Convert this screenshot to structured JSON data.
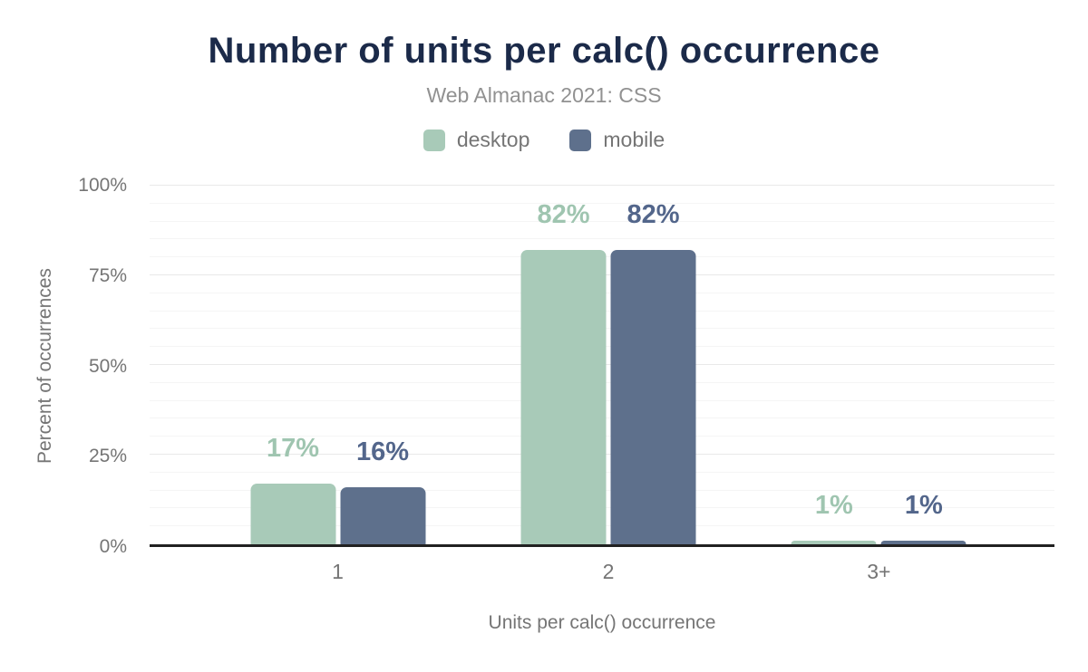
{
  "header": {
    "title": "Number of units per calc() occurrence",
    "subtitle": "Web Almanac 2021: CSS"
  },
  "chart_data": {
    "type": "bar",
    "title": "Number of units per calc() occurrence",
    "subtitle": "Web Almanac 2021: CSS",
    "categories": [
      "1",
      "2",
      "3+"
    ],
    "series": [
      {
        "name": "desktop",
        "color": "#a8cab8",
        "label_color": "#9fc5b0",
        "values": [
          17,
          82,
          1
        ],
        "labels": [
          "17%",
          "82%",
          "1%"
        ]
      },
      {
        "name": "mobile",
        "color": "#5e708c",
        "label_color": "#53668b",
        "values": [
          16,
          82,
          1
        ],
        "labels": [
          "16%",
          "82%",
          "1%"
        ]
      }
    ],
    "xlabel": "Units per calc() occurrence",
    "ylabel": "Percent of occurrences",
    "ylim": [
      0,
      100
    ],
    "yticks": [
      0,
      25,
      50,
      75,
      100
    ],
    "ytick_labels": [
      "0%",
      "25%",
      "50%",
      "75%",
      "100%"
    ],
    "minor_grid_step": 5,
    "major_grid_step": 25,
    "grid": true,
    "legend_position": "top"
  }
}
